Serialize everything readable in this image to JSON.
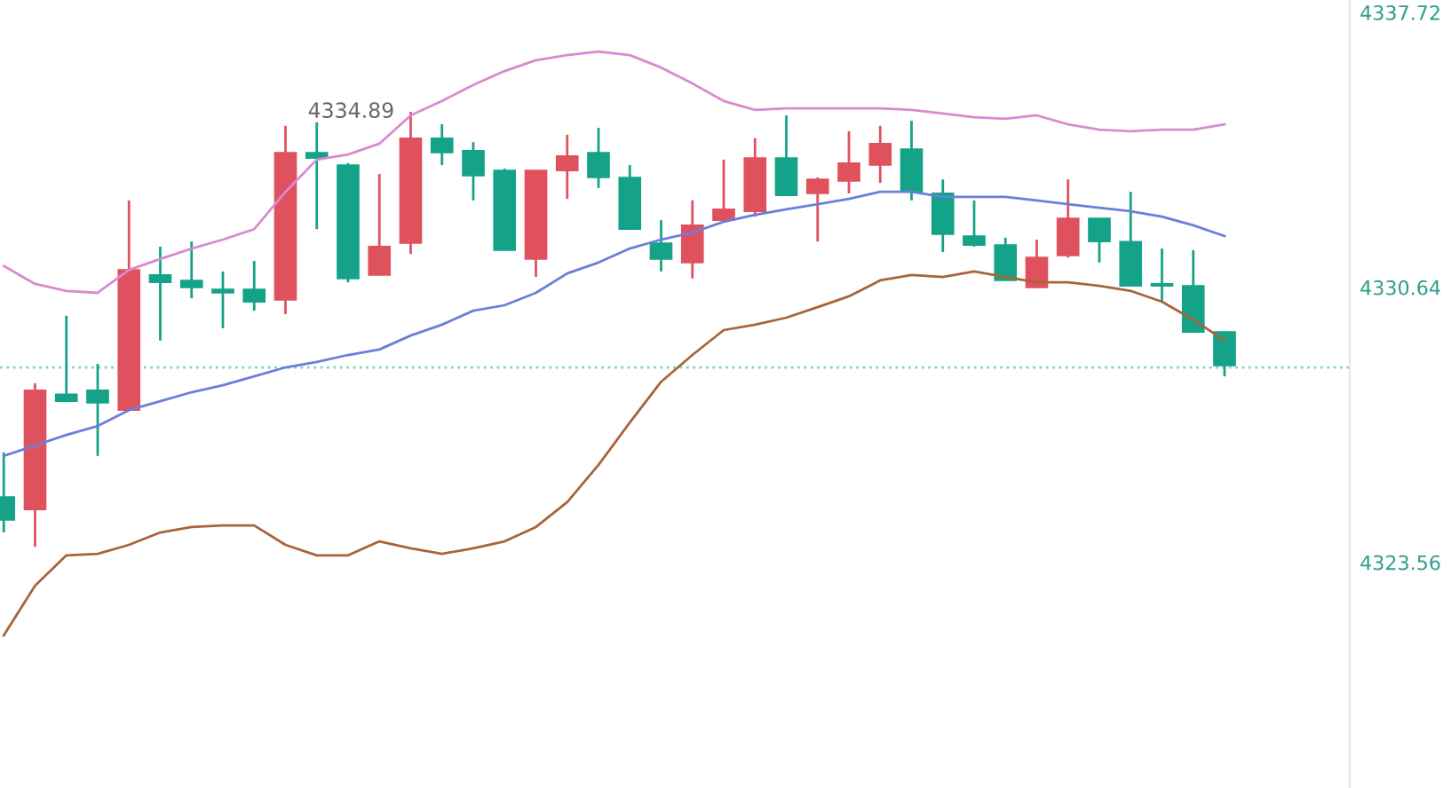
{
  "chart_data": {
    "type": "candlestick",
    "categories": [
      null,
      null,
      null,
      null,
      null,
      null,
      null,
      null,
      null,
      null,
      null,
      null,
      null,
      null,
      null,
      null,
      null,
      null,
      null,
      null,
      null,
      null,
      null,
      null,
      null,
      null,
      null,
      null,
      null,
      null,
      null,
      null,
      null,
      null,
      null,
      null,
      null,
      null,
      null,
      null
    ],
    "ohlc": [
      [
        4325.24,
        4326.39,
        4324.33,
        4324.65
      ],
      [
        4324.92,
        4328.17,
        4323.96,
        4327.99
      ],
      [
        4327.89,
        4329.91,
        4327.71,
        4327.71
      ],
      [
        4327.99,
        4328.67,
        4326.3,
        4327.67
      ],
      [
        4327.48,
        4332.88,
        4327.48,
        4331.09
      ],
      [
        4330.96,
        4331.69,
        4329.27,
        4330.77
      ],
      [
        4330.82,
        4331.82,
        4330.36,
        4330.64
      ],
      [
        4330.59,
        4331.05,
        4329.59,
        4330.5
      ],
      [
        4330.59,
        4331.32,
        4330.04,
        4330.27
      ],
      [
        4330.32,
        4334.8,
        4329.95,
        4334.11
      ],
      [
        4334.11,
        4334.89,
        4332.14,
        4333.97
      ],
      [
        4333.79,
        4333.84,
        4330.77,
        4330.87
      ],
      [
        4330.96,
        4333.56,
        4330.96,
        4331.69
      ],
      [
        4331.78,
        4335.16,
        4331.5,
        4334.48
      ],
      [
        4334.48,
        4334.84,
        4333.79,
        4334.11
      ],
      [
        4334.16,
        4334.38,
        4332.88,
        4333.52
      ],
      [
        4333.65,
        4333.7,
        4331.6,
        4331.6
      ],
      [
        4331.37,
        4333.65,
        4330.91,
        4333.65
      ],
      [
        4333.65,
        4334.57,
        4332.92,
        4334.02
      ],
      [
        4334.11,
        4334.75,
        4333.2,
        4333.47
      ],
      [
        4333.47,
        4333.79,
        4332.14,
        4332.14
      ],
      [
        4331.78,
        4332.37,
        4331.05,
        4331.37
      ],
      [
        4331.28,
        4332.88,
        4330.87,
        4332.24
      ],
      [
        4332.37,
        4333.93,
        4332.37,
        4332.65
      ],
      [
        4332.6,
        4334.48,
        4332.46,
        4333.97
      ],
      [
        4333.97,
        4335.07,
        4333.01,
        4333.01
      ],
      [
        4333.06,
        4333.47,
        4331.82,
        4333.42
      ],
      [
        4333.38,
        4334.66,
        4333.06,
        4333.84
      ],
      [
        4333.79,
        4334.8,
        4333.33,
        4334.34
      ],
      [
        4334.2,
        4334.93,
        4332.88,
        4333.1
      ],
      [
        4333.06,
        4333.42,
        4331.55,
        4332.01
      ],
      [
        4331.96,
        4332.88,
        4331.69,
        4331.73
      ],
      [
        4331.73,
        4331.92,
        4330.82,
        4330.82
      ],
      [
        4330.64,
        4331.87,
        4330.64,
        4331.41
      ],
      [
        4331.46,
        4333.42,
        4331.41,
        4332.42
      ],
      [
        4332.42,
        4332.42,
        4331.28,
        4331.82
      ],
      [
        4331.82,
        4333.1,
        4330.68,
        4330.68
      ],
      [
        4330.73,
        4331.64,
        4330.27,
        4330.68
      ],
      [
        4330.68,
        4331.6,
        4329.49,
        4329.49
      ],
      [
        4329.49,
        4329.49,
        4328.35,
        4328.63
      ]
    ],
    "colors": [
      "#14a388",
      "#e0515e",
      "#14a388",
      "#14a388",
      "#e0515e",
      "#14a388",
      "#14a388",
      "#14a388",
      "#14a388",
      "#e0515e",
      "#14a388",
      "#14a388",
      "#e0515e",
      "#e0515e",
      "#14a388",
      "#14a388",
      "#14a388",
      "#e0515e",
      "#e0515e",
      "#14a388",
      "#14a388",
      "#14a388",
      "#e0515e",
      "#e0515e",
      "#e0515e",
      "#14a388",
      "#e0515e",
      "#e0515e",
      "#e0515e",
      "#14a388",
      "#14a388",
      "#14a388",
      "#14a388",
      "#e0515e",
      "#e0515e",
      "#14a388",
      "#14a388",
      "#14a388",
      "#14a388",
      "#14a388"
    ],
    "series": [
      {
        "type": "line",
        "color": "#d98ad0",
        "values": [
          4331.19,
          4330.73,
          4330.55,
          4330.5,
          4331.09,
          4331.37,
          4331.64,
          4331.87,
          4332.14,
          4333.1,
          4333.93,
          4334.06,
          4334.34,
          4335.07,
          4335.44,
          4335.85,
          4336.21,
          4336.49,
          4336.62,
          4336.71,
          4336.62,
          4336.3,
          4335.89,
          4335.44,
          4335.21,
          4335.25,
          4335.25,
          4335.25,
          4335.25,
          4335.21,
          4335.12,
          4335.02,
          4334.98,
          4335.07,
          4334.84,
          4334.7,
          4334.66,
          4334.7,
          4334.7,
          4334.84
        ]
      },
      {
        "type": "line",
        "color": "#6a7fdb",
        "values": [
          4326.3,
          4326.57,
          4326.84,
          4327.07,
          4327.48,
          4327.71,
          4327.94,
          4328.12,
          4328.35,
          4328.58,
          4328.72,
          4328.9,
          4329.04,
          4329.4,
          4329.68,
          4330.04,
          4330.18,
          4330.5,
          4331.0,
          4331.28,
          4331.64,
          4331.87,
          4332.05,
          4332.33,
          4332.51,
          4332.65,
          4332.78,
          4332.92,
          4333.1,
          4333.1,
          4332.97,
          4332.97,
          4332.97,
          4332.88,
          4332.78,
          4332.69,
          4332.6,
          4332.46,
          4332.24,
          4331.96
        ]
      },
      {
        "type": "line",
        "color": "#a8643a",
        "values": [
          4321.68,
          4322.96,
          4323.74,
          4323.78,
          4324.01,
          4324.33,
          4324.47,
          4324.51,
          4324.51,
          4324.01,
          4323.74,
          4323.74,
          4324.1,
          4323.92,
          4323.78,
          4323.92,
          4324.1,
          4324.47,
          4325.11,
          4326.07,
          4327.16,
          4328.21,
          4328.9,
          4329.54,
          4329.68,
          4329.86,
          4330.13,
          4330.41,
          4330.82,
          4330.96,
          4330.91,
          4331.05,
          4330.91,
          4330.77,
          4330.77,
          4330.68,
          4330.55,
          4330.27,
          4329.81,
          4329.27
        ]
      }
    ],
    "ylim": [
      4317.75,
      4338.04
    ],
    "yticks": [
      4337.72,
      4330.64,
      4323.56
    ],
    "ref_lines": [
      {
        "axis": "y",
        "value": 4328.58,
        "color": "#7fd3c3",
        "line_style": "dotted"
      }
    ],
    "annotations": [
      "4334.89"
    ],
    "tick_labels": "y",
    "grid": false
  }
}
